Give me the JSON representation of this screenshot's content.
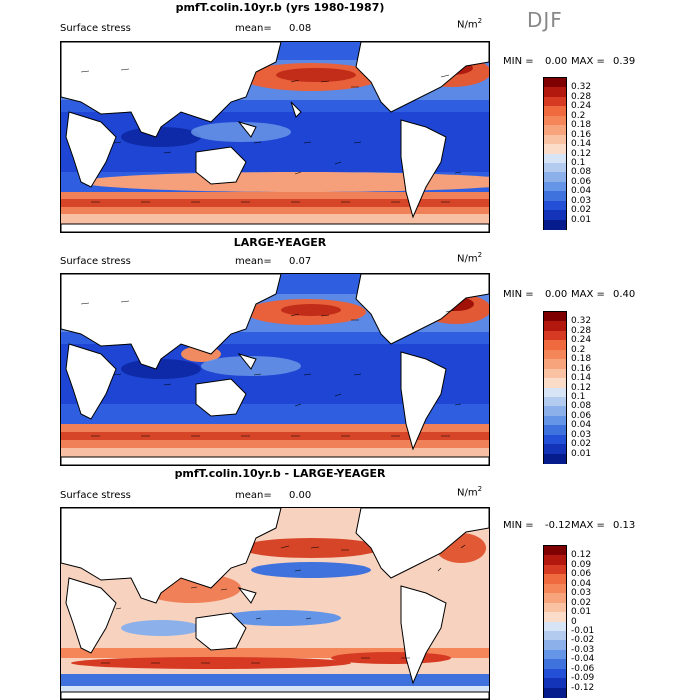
{
  "season": "DJF",
  "units": "N/m",
  "units_exp": "2",
  "panels": [
    {
      "title": "pmfT.colin.10yr.b (yrs 1980-1987)",
      "variable": "Surface stress",
      "mean_label": "mean=",
      "mean_value": "0.08",
      "min_label": "MIN =",
      "min_value": "0.00",
      "max_label": "MAX =",
      "max_value": "0.39",
      "levels": [
        "0.32",
        "0.28",
        "0.24",
        "0.2",
        "0.18",
        "0.16",
        "0.14",
        "0.12",
        "0.1",
        "0.08",
        "0.06",
        "0.04",
        "0.03",
        "0.02",
        "0.01"
      ],
      "colors": [
        "#7f0000",
        "#b2180e",
        "#d73a22",
        "#ef6a3e",
        "#f4865a",
        "#f7a47c",
        "#f9c2a3",
        "#fbdcc8",
        "#d6e4f5",
        "#b3cbef",
        "#8bb0ea",
        "#6495e6",
        "#3f72dd",
        "#2350d6",
        "#1333b8",
        "#071c8c"
      ]
    },
    {
      "title": "LARGE-YEAGER",
      "variable": "Surface stress",
      "mean_label": "mean=",
      "mean_value": "0.07",
      "min_label": "MIN =",
      "min_value": "0.00",
      "max_label": "MAX =",
      "max_value": "0.40",
      "levels": [
        "0.32",
        "0.28",
        "0.24",
        "0.2",
        "0.18",
        "0.16",
        "0.14",
        "0.12",
        "0.1",
        "0.08",
        "0.06",
        "0.04",
        "0.03",
        "0.02",
        "0.01"
      ],
      "colors": [
        "#7f0000",
        "#b2180e",
        "#d73a22",
        "#ef6a3e",
        "#f4865a",
        "#f7a47c",
        "#f9c2a3",
        "#fbdcc8",
        "#d6e4f5",
        "#b3cbef",
        "#8bb0ea",
        "#6495e6",
        "#3f72dd",
        "#2350d6",
        "#1333b8",
        "#071c8c"
      ]
    },
    {
      "title": "pmfT.colin.10yr.b - LARGE-YEAGER",
      "variable": "Surface stress",
      "mean_label": "mean=",
      "mean_value": "0.00",
      "min_label": "MIN =",
      "min_value": "-0.12",
      "max_label": "MAX =",
      "max_value": "0.13",
      "levels": [
        "0.12",
        "0.09",
        "0.06",
        "0.04",
        "0.03",
        "0.02",
        "0.01",
        "0",
        "-0.01",
        "-0.02",
        "-0.03",
        "-0.04",
        "-0.06",
        "-0.09",
        "-0.12"
      ],
      "colors": [
        "#7f0000",
        "#b2180e",
        "#d73a22",
        "#ef6a3e",
        "#f4865a",
        "#f7a47c",
        "#f9c2a3",
        "#fbdcc8",
        "#d6e4f5",
        "#b3cbef",
        "#8bb0ea",
        "#6495e6",
        "#3f72dd",
        "#2350d6",
        "#1333b8",
        "#071c8c"
      ]
    }
  ]
}
